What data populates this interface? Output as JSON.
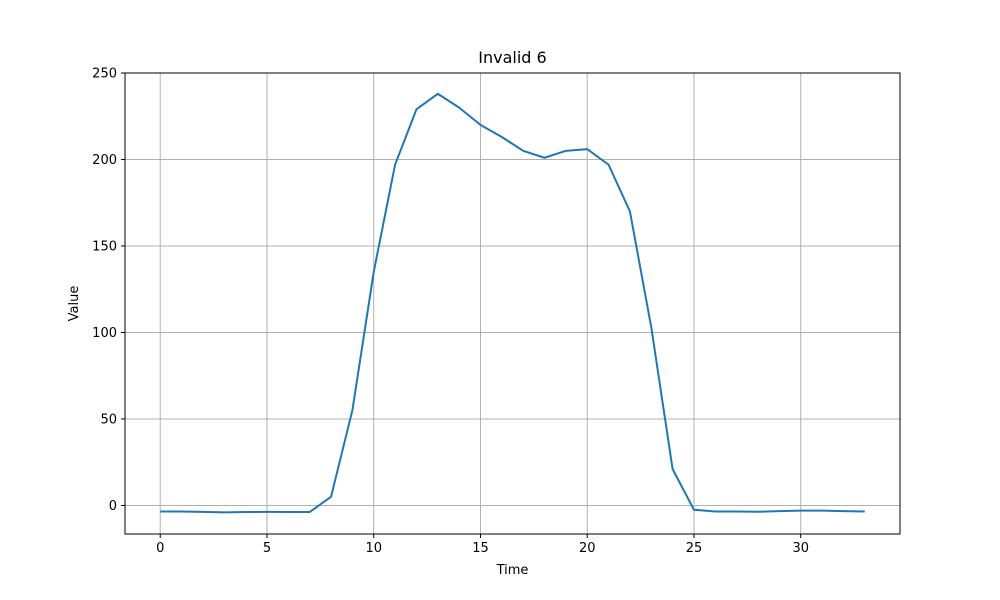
{
  "chart_data": {
    "type": "line",
    "title": "Invalid 6",
    "xlabel": "Time",
    "ylabel": "Value",
    "xlim": [
      -1.65,
      34.65
    ],
    "ylim": [
      -16.5,
      250
    ],
    "xticks": [
      0,
      5,
      10,
      15,
      20,
      25,
      30
    ],
    "yticks": [
      0,
      50,
      100,
      150,
      200,
      250
    ],
    "grid": true,
    "series": [
      {
        "color": "#1f77b4",
        "x": [
          0,
          1,
          2,
          3,
          4,
          5,
          6,
          7,
          8,
          9,
          10,
          11,
          12,
          13,
          14,
          15,
          16,
          17,
          18,
          19,
          20,
          21,
          22,
          23,
          24,
          25,
          26,
          27,
          28,
          29,
          30,
          31,
          32,
          33
        ],
        "values": [
          -3.5,
          -3.5,
          -3.7,
          -4,
          -3.8,
          -3.7,
          -3.8,
          -3.8,
          5,
          55,
          135,
          197,
          229,
          238,
          230,
          220,
          213,
          205,
          201,
          205,
          206,
          197,
          170,
          103,
          21,
          -2.5,
          -3.5,
          -3.5,
          -3.6,
          -3.3,
          -3,
          -3,
          -3.3,
          -3.5
        ]
      }
    ]
  }
}
